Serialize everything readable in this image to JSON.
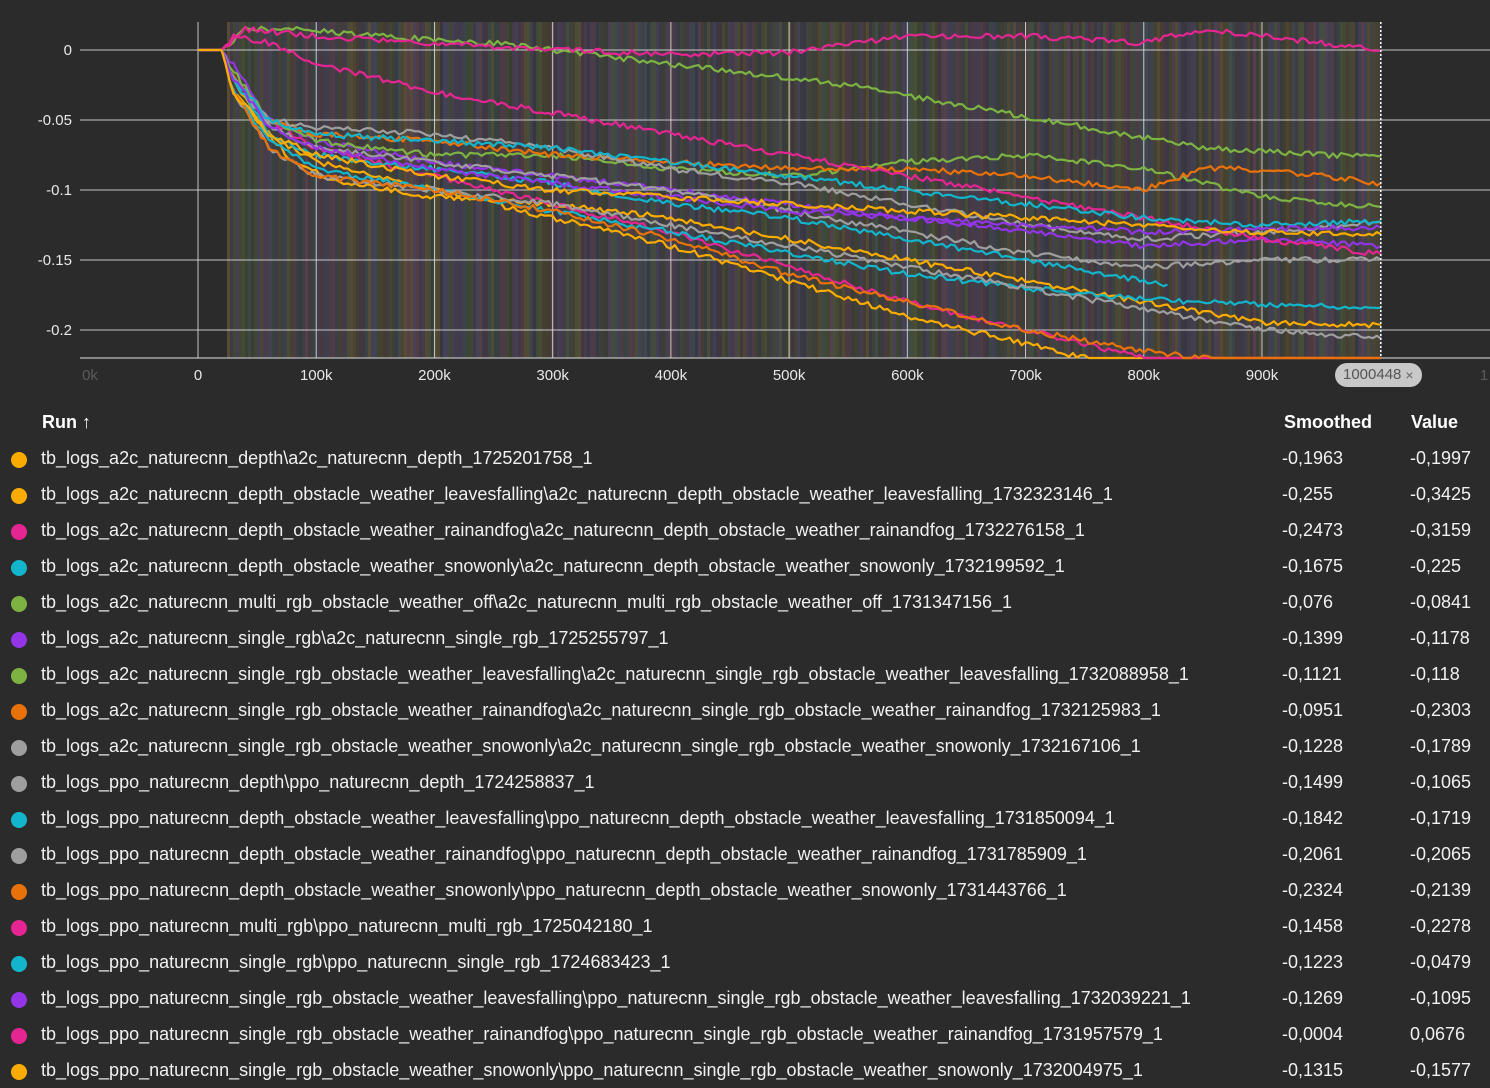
{
  "chart_data": {
    "type": "line",
    "title": "",
    "xlabel": "",
    "ylabel": "",
    "x_ticks": [
      "0k",
      "0",
      "100k",
      "200k",
      "300k",
      "400k",
      "500k",
      "600k",
      "700k",
      "800k",
      "900k",
      "1"
    ],
    "y_ticks": [
      "0",
      "-0.05",
      "-0.1",
      "-0.15",
      "-0.2"
    ],
    "xlim": [
      -100000,
      1100000
    ],
    "ylim": [
      -0.22,
      0.02
    ],
    "grid": true,
    "step_marker": "1000448",
    "series": [
      {
        "name": "tb_logs_a2c_naturecnn_depth\\a2c_naturecnn_depth_1725201758_1",
        "color": "#f9ab00",
        "smoothed": "-0,1963",
        "value": "-0,1997",
        "x": [
          0,
          20000,
          30000,
          50000,
          80000,
          120000,
          200000,
          300000,
          400000,
          500000,
          600000,
          700000,
          800000,
          900000,
          1000448
        ],
        "y": [
          0,
          0,
          -0.02,
          -0.05,
          -0.08,
          -0.095,
          -0.105,
          -0.11,
          -0.12,
          -0.135,
          -0.15,
          -0.165,
          -0.18,
          -0.195,
          -0.1963
        ]
      },
      {
        "name": "tb_logs_a2c_naturecnn_depth_obstacle_weather_leavesfalling\\a2c_naturecnn_depth_obstacle_weather_leavesfalling_1732323146_1",
        "color": "#f9ab00",
        "smoothed": "-0,255",
        "value": "-0,3425",
        "x": [
          0,
          20000,
          30000,
          60000,
          100000,
          200000,
          300000,
          400000,
          500000,
          600000,
          700000,
          800000,
          900000,
          1000448
        ],
        "y": [
          0,
          0,
          -0.03,
          -0.06,
          -0.08,
          -0.1,
          -0.12,
          -0.14,
          -0.165,
          -0.19,
          -0.21,
          -0.23,
          -0.245,
          -0.255
        ]
      },
      {
        "name": "tb_logs_a2c_naturecnn_depth_obstacle_weather_rainandfog\\a2c_naturecnn_depth_obstacle_weather_rainandfog_1732276158_1",
        "color": "#e52592",
        "smoothed": "-0,2473",
        "value": "-0,3159",
        "x": [
          0,
          20000,
          30000,
          60000,
          100000,
          200000,
          300000,
          400000,
          500000,
          600000,
          700000,
          800000,
          900000,
          1000448
        ],
        "y": [
          0,
          0,
          -0.02,
          -0.05,
          -0.07,
          -0.09,
          -0.11,
          -0.13,
          -0.155,
          -0.18,
          -0.2,
          -0.22,
          -0.24,
          -0.2473
        ]
      },
      {
        "name": "tb_logs_a2c_naturecnn_depth_obstacle_weather_snowonly\\a2c_naturecnn_depth_obstacle_weather_snowonly_1732199592_1",
        "color": "#12b5cb",
        "smoothed": "-0,1675",
        "value": "-0,225",
        "x": [
          0,
          20000,
          30000,
          60000,
          100000,
          200000,
          300000,
          400000,
          500000,
          600000,
          700000,
          800000,
          820000
        ],
        "y": [
          0,
          0,
          -0.02,
          -0.06,
          -0.075,
          -0.085,
          -0.095,
          -0.11,
          -0.12,
          -0.135,
          -0.15,
          -0.165,
          -0.1675
        ]
      },
      {
        "name": "tb_logs_a2c_naturecnn_multi_rgb_obstacle_weather_off\\a2c_naturecnn_multi_rgb_obstacle_weather_off_1731347156_1",
        "color": "#7cb342",
        "smoothed": "-0,076",
        "value": "-0,0841",
        "x": [
          0,
          20000,
          40000,
          80000,
          150000,
          250000,
          350000,
          450000,
          550000,
          650000,
          750000,
          850000,
          950000,
          1000448
        ],
        "y": [
          0,
          0,
          0.015,
          0.015,
          0.01,
          0.005,
          -0.005,
          -0.015,
          -0.025,
          -0.04,
          -0.055,
          -0.07,
          -0.075,
          -0.076
        ]
      },
      {
        "name": "tb_logs_a2c_naturecnn_single_rgb\\a2c_naturecnn_single_rgb_1725255797_1",
        "color": "#9334e6",
        "smoothed": "-0,1399",
        "value": "-0,1178",
        "x": [
          0,
          20000,
          30000,
          60000,
          100000,
          200000,
          300000,
          400000,
          500000,
          600000,
          700000,
          800000,
          900000,
          1000448
        ],
        "y": [
          0,
          0,
          -0.01,
          -0.05,
          -0.065,
          -0.08,
          -0.09,
          -0.1,
          -0.11,
          -0.12,
          -0.13,
          -0.14,
          -0.135,
          -0.1399
        ]
      },
      {
        "name": "tb_logs_a2c_naturecnn_single_rgb_obstacle_weather_leavesfalling\\a2c_naturecnn_single_rgb_obstacle_weather_leavesfalling_1732088958_1",
        "color": "#7cb342",
        "smoothed": "-0,1121",
        "value": "-0,118",
        "x": [
          0,
          20000,
          30000,
          60000,
          100000,
          200000,
          300000,
          400000,
          500000,
          600000,
          700000,
          800000,
          900000,
          1000448
        ],
        "y": [
          0,
          0,
          -0.015,
          -0.05,
          -0.065,
          -0.075,
          -0.075,
          -0.085,
          -0.09,
          -0.08,
          -0.075,
          -0.085,
          -0.105,
          -0.1121
        ]
      },
      {
        "name": "tb_logs_a2c_naturecnn_single_rgb_obstacle_weather_rainandfog\\a2c_naturecnn_single_rgb_obstacle_weather_rainandfog_1732125983_1",
        "color": "#e8710a",
        "smoothed": "-0,0951",
        "value": "-0,2303",
        "x": [
          0,
          20000,
          30000,
          60000,
          100000,
          200000,
          300000,
          400000,
          500000,
          600000,
          700000,
          800000,
          850000,
          900000,
          1000448
        ],
        "y": [
          0,
          0,
          -0.02,
          -0.05,
          -0.06,
          -0.065,
          -0.075,
          -0.08,
          -0.085,
          -0.085,
          -0.09,
          -0.1,
          -0.085,
          -0.085,
          -0.0951
        ]
      },
      {
        "name": "tb_logs_a2c_naturecnn_single_rgb_obstacle_weather_snowonly\\a2c_naturecnn_single_rgb_obstacle_weather_snowonly_1732167106_1",
        "color": "#9e9e9e",
        "smoothed": "-0,1228",
        "value": "-0,1789",
        "x": [
          0,
          20000,
          30000,
          60000,
          100000,
          200000,
          300000,
          400000,
          500000,
          600000,
          700000,
          800000,
          900000,
          1000448
        ],
        "y": [
          0,
          0,
          -0.02,
          -0.05,
          -0.055,
          -0.06,
          -0.07,
          -0.085,
          -0.095,
          -0.11,
          -0.125,
          -0.135,
          -0.13,
          -0.1228
        ]
      },
      {
        "name": "tb_logs_ppo_naturecnn_depth\\ppo_naturecnn_depth_1724258837_1",
        "color": "#9e9e9e",
        "smoothed": "-0,1499",
        "value": "-0,1065",
        "x": [
          0,
          20000,
          30000,
          60000,
          100000,
          200000,
          300000,
          400000,
          500000,
          600000,
          700000,
          800000,
          900000,
          1000448
        ],
        "y": [
          0,
          0,
          -0.02,
          -0.055,
          -0.07,
          -0.08,
          -0.09,
          -0.1,
          -0.115,
          -0.13,
          -0.145,
          -0.155,
          -0.15,
          -0.1499
        ]
      },
      {
        "name": "tb_logs_ppo_naturecnn_depth_obstacle_weather_leavesfalling\\ppo_naturecnn_depth_obstacle_weather_leavesfalling_1731850094_1",
        "color": "#12b5cb",
        "smoothed": "-0,1842",
        "value": "-0,1719",
        "x": [
          0,
          20000,
          30000,
          60000,
          100000,
          200000,
          300000,
          400000,
          500000,
          600000,
          700000,
          800000,
          900000,
          1000448
        ],
        "y": [
          0,
          0,
          -0.03,
          -0.065,
          -0.085,
          -0.1,
          -0.115,
          -0.13,
          -0.145,
          -0.16,
          -0.17,
          -0.178,
          -0.182,
          -0.1842
        ]
      },
      {
        "name": "tb_logs_ppo_naturecnn_depth_obstacle_weather_rainandfog\\ppo_naturecnn_depth_obstacle_weather_rainandfog_1731785909_1",
        "color": "#9e9e9e",
        "smoothed": "-0,2061",
        "value": "-0,2065",
        "x": [
          0,
          20000,
          30000,
          60000,
          100000,
          200000,
          300000,
          400000,
          500000,
          600000,
          700000,
          800000,
          900000,
          1000448
        ],
        "y": [
          0,
          0,
          -0.03,
          -0.07,
          -0.09,
          -0.1,
          -0.11,
          -0.125,
          -0.14,
          -0.155,
          -0.17,
          -0.185,
          -0.2,
          -0.2061
        ]
      },
      {
        "name": "tb_logs_ppo_naturecnn_depth_obstacle_weather_snowonly\\ppo_naturecnn_depth_obstacle_weather_snowonly_1731443766_1",
        "color": "#e8710a",
        "smoothed": "-0,2324",
        "value": "-0,2139",
        "x": [
          0,
          20000,
          30000,
          60000,
          100000,
          200000,
          300000,
          400000,
          500000,
          600000,
          700000,
          800000,
          900000,
          1000448
        ],
        "y": [
          0,
          0,
          -0.03,
          -0.07,
          -0.09,
          -0.1,
          -0.115,
          -0.135,
          -0.16,
          -0.18,
          -0.2,
          -0.215,
          -0.225,
          -0.2324
        ]
      },
      {
        "name": "tb_logs_ppo_naturecnn_multi_rgb\\ppo_naturecnn_multi_rgb_1725042180_1",
        "color": "#e52592",
        "smoothed": "-0,1458",
        "value": "-0,2278",
        "x": [
          0,
          20000,
          30000,
          60000,
          100000,
          200000,
          300000,
          400000,
          500000,
          600000,
          700000,
          800000,
          900000,
          1000448
        ],
        "y": [
          0,
          0,
          0.01,
          0.005,
          -0.01,
          -0.03,
          -0.045,
          -0.06,
          -0.075,
          -0.09,
          -0.105,
          -0.12,
          -0.135,
          -0.1458
        ]
      },
      {
        "name": "tb_logs_ppo_naturecnn_single_rgb\\ppo_naturecnn_single_rgb_1724683423_1",
        "color": "#12b5cb",
        "smoothed": "-0,1223",
        "value": "-0,0479",
        "x": [
          0,
          20000,
          30000,
          60000,
          100000,
          200000,
          300000,
          400000,
          500000,
          600000,
          700000,
          800000,
          900000,
          1000448
        ],
        "y": [
          0,
          0,
          -0.02,
          -0.05,
          -0.06,
          -0.065,
          -0.07,
          -0.08,
          -0.09,
          -0.1,
          -0.11,
          -0.12,
          -0.125,
          -0.1223
        ]
      },
      {
        "name": "tb_logs_ppo_naturecnn_single_rgb_obstacle_weather_leavesfalling\\ppo_naturecnn_single_rgb_obstacle_weather_leavesfalling_1732039221_1",
        "color": "#9334e6",
        "smoothed": "-0,1269",
        "value": "-0,1095",
        "x": [
          0,
          20000,
          30000,
          60000,
          100000,
          200000,
          300000,
          400000,
          500000,
          600000,
          700000,
          800000,
          900000,
          1000448
        ],
        "y": [
          0,
          0,
          -0.02,
          -0.055,
          -0.07,
          -0.085,
          -0.095,
          -0.105,
          -0.115,
          -0.12,
          -0.125,
          -0.13,
          -0.128,
          -0.1269
        ]
      },
      {
        "name": "tb_logs_ppo_naturecnn_single_rgb_obstacle_weather_rainandfog\\ppo_naturecnn_single_rgb_obstacle_weather_rainandfog_1731957579_1",
        "color": "#e52592",
        "smoothed": "-0,0004",
        "value": "0,0676",
        "x": [
          0,
          20000,
          40000,
          100000,
          200000,
          300000,
          400000,
          500000,
          600000,
          700000,
          800000,
          850000,
          900000,
          1000448
        ],
        "y": [
          0,
          0,
          0.015,
          0.01,
          0.005,
          0,
          -0.003,
          -0.002,
          0.01,
          0.01,
          0.005,
          0.015,
          0.01,
          -0.0004
        ]
      },
      {
        "name": "tb_logs_ppo_naturecnn_single_rgb_obstacle_weather_snowonly\\ppo_naturecnn_single_rgb_obstacle_weather_snowonly_1732004975_1",
        "color": "#f9ab00",
        "smoothed": "-0,1315",
        "value": "-0,1577",
        "x": [
          0,
          20000,
          30000,
          60000,
          100000,
          200000,
          300000,
          400000,
          500000,
          600000,
          700000,
          800000,
          900000,
          1000448
        ],
        "y": [
          0,
          0,
          -0.03,
          -0.06,
          -0.075,
          -0.09,
          -0.1,
          -0.105,
          -0.11,
          -0.115,
          -0.12,
          -0.125,
          -0.13,
          -0.1315
        ]
      }
    ]
  },
  "table": {
    "run_header": "Run ↑",
    "smoothed_header": "Smoothed",
    "value_header": "Value"
  },
  "step_chip": {
    "label": "1000448",
    "close": "×"
  }
}
